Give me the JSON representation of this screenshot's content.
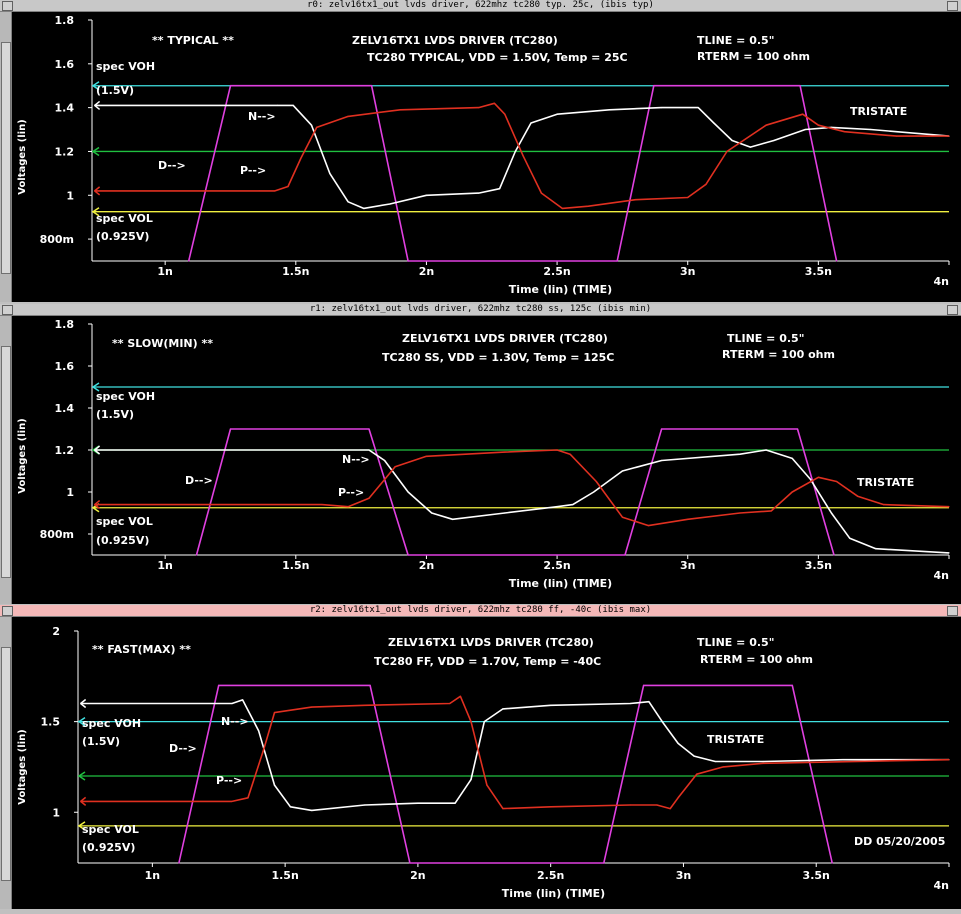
{
  "panels": [
    {
      "window_title": "r0: zelv16tx1_out lvds driver, 622mhz tc280 typ. 25c, (ibis typ)",
      "corner_label": "** TYPICAL **",
      "header_line1": "ZELV16TX1 LVDS DRIVER (TC280)",
      "header_line2": "TC280 TYPICAL, VDD = 1.50V, Temp = 25C",
      "tline_label": "TLINE = 0.5\"",
      "rterm_label": "RTERM = 100 ohm",
      "tristate_label": "TRISTATE",
      "d_label": "D-->",
      "n_label": "N-->",
      "p_label": "P-->",
      "voh_label": "spec VOH",
      "voh_value": "(1.5V)",
      "vol_label": "spec VOL",
      "vol_value": "(0.925V)",
      "date_label": "",
      "active": false
    },
    {
      "window_title": "r1: zelv16tx1_out lvds driver, 622mhz tc280 ss, 125c (ibis min)",
      "corner_label": "** SLOW(MIN) **",
      "header_line1": "ZELV16TX1 LVDS DRIVER (TC280)",
      "header_line2": "TC280 SS, VDD = 1.30V, Temp = 125C",
      "tline_label": "TLINE = 0.5\"",
      "rterm_label": "RTERM = 100 ohm",
      "tristate_label": "TRISTATE",
      "d_label": "D-->",
      "n_label": "N-->",
      "p_label": "P-->",
      "voh_label": "spec VOH",
      "voh_value": "(1.5V)",
      "vol_label": "spec VOL",
      "vol_value": "(0.925V)",
      "date_label": "",
      "active": false
    },
    {
      "window_title": "r2: zelv16tx1_out lvds driver, 622mhz tc280 ff, -40c (ibis max)",
      "corner_label": "** FAST(MAX) **",
      "header_line1": "ZELV16TX1 LVDS DRIVER (TC280)",
      "header_line2": "TC280 FF, VDD = 1.70V, Temp = -40C",
      "tline_label": "TLINE = 0.5\"",
      "rterm_label": "RTERM = 100 ohm",
      "tristate_label": "TRISTATE",
      "d_label": "D-->",
      "n_label": "N-->",
      "p_label": "P-->",
      "voh_label": "spec VOH",
      "voh_value": "(1.5V)",
      "vol_label": "spec VOL",
      "vol_value": "(0.925V)",
      "date_label": "DD 05/20/2005",
      "active": true
    }
  ],
  "colors": {
    "background": "#000000",
    "axis": "#ffffff",
    "voh": "#40e0e0",
    "vol": "#f0f040",
    "mid": "#20c040",
    "d": "#e040e0",
    "n": "#ffffff",
    "p": "#e03020",
    "text": "#ffffff"
  },
  "chart_data": [
    {
      "type": "line",
      "xlabel": "Time (lin) (TIME)",
      "ylabel": "Voltages (lin)",
      "xlim": [
        0.72,
        4.0
      ],
      "ylim": [
        0.7,
        1.8
      ],
      "x_ticks": [
        1.0,
        1.5,
        2.0,
        2.5,
        3.0,
        3.5,
        4.0
      ],
      "x_tick_labels": [
        "1n",
        "1.5n",
        "2n",
        "2.5n",
        "3n",
        "3.5n",
        "4n"
      ],
      "y_ticks": [
        0.8,
        1.0,
        1.2,
        1.4,
        1.6,
        1.8
      ],
      "y_tick_labels": [
        "800m",
        "1",
        "1.2",
        "1.4",
        "1.6",
        "1.8"
      ],
      "hlines": {
        "voh": 1.5,
        "vol": 0.925,
        "mid": 1.2
      },
      "series": [
        {
          "key": "d",
          "points": [
            [
              1.09,
              0.7
            ],
            [
              1.25,
              1.5
            ],
            [
              1.79,
              1.5
            ],
            [
              1.93,
              0.7
            ],
            [
              2.73,
              0.7
            ],
            [
              2.87,
              1.5
            ],
            [
              3.43,
              1.5
            ],
            [
              3.57,
              0.7
            ]
          ]
        },
        {
          "key": "n",
          "points": [
            [
              0.73,
              1.41
            ],
            [
              1.43,
              1.41
            ],
            [
              1.49,
              1.41
            ],
            [
              1.56,
              1.32
            ],
            [
              1.63,
              1.1
            ],
            [
              1.7,
              0.97
            ],
            [
              1.76,
              0.94
            ],
            [
              1.86,
              0.96
            ],
            [
              2.0,
              1.0
            ],
            [
              2.2,
              1.01
            ],
            [
              2.28,
              1.03
            ],
            [
              2.34,
              1.2
            ],
            [
              2.4,
              1.33
            ],
            [
              2.5,
              1.37
            ],
            [
              2.7,
              1.39
            ],
            [
              2.9,
              1.4
            ],
            [
              3.04,
              1.4
            ],
            [
              3.1,
              1.33
            ],
            [
              3.17,
              1.25
            ],
            [
              3.24,
              1.22
            ],
            [
              3.33,
              1.25
            ],
            [
              3.45,
              1.3
            ],
            [
              3.55,
              1.31
            ],
            [
              3.7,
              1.3
            ],
            [
              4.0,
              1.27
            ]
          ]
        },
        {
          "key": "p",
          "points": [
            [
              0.73,
              1.02
            ],
            [
              1.36,
              1.02
            ],
            [
              1.42,
              1.02
            ],
            [
              1.47,
              1.04
            ],
            [
              1.52,
              1.17
            ],
            [
              1.58,
              1.31
            ],
            [
              1.7,
              1.36
            ],
            [
              1.9,
              1.39
            ],
            [
              2.2,
              1.4
            ],
            [
              2.26,
              1.42
            ],
            [
              2.3,
              1.37
            ],
            [
              2.37,
              1.18
            ],
            [
              2.44,
              1.01
            ],
            [
              2.52,
              0.94
            ],
            [
              2.62,
              0.95
            ],
            [
              2.8,
              0.98
            ],
            [
              3.0,
              0.99
            ],
            [
              3.07,
              1.05
            ],
            [
              3.15,
              1.2
            ],
            [
              3.3,
              1.32
            ],
            [
              3.44,
              1.37
            ],
            [
              3.5,
              1.32
            ],
            [
              3.6,
              1.29
            ],
            [
              3.8,
              1.27
            ],
            [
              4.0,
              1.27
            ]
          ]
        }
      ]
    },
    {
      "type": "line",
      "xlabel": "Time (lin) (TIME)",
      "ylabel": "Voltages (lin)",
      "xlim": [
        0.72,
        4.0
      ],
      "ylim": [
        0.7,
        1.8
      ],
      "x_ticks": [
        1.0,
        1.5,
        2.0,
        2.5,
        3.0,
        3.5,
        4.0
      ],
      "x_tick_labels": [
        "1n",
        "1.5n",
        "2n",
        "2.5n",
        "3n",
        "3.5n",
        "4n"
      ],
      "y_ticks": [
        0.8,
        1.0,
        1.2,
        1.4,
        1.6,
        1.8
      ],
      "y_tick_labels": [
        "800m",
        "1",
        "1.2",
        "1.4",
        "1.6",
        "1.8"
      ],
      "hlines": {
        "voh": 1.5,
        "vol": 0.925,
        "mid": 1.2
      },
      "series": [
        {
          "key": "d",
          "points": [
            [
              1.12,
              0.7
            ],
            [
              1.25,
              1.3
            ],
            [
              1.78,
              1.3
            ],
            [
              1.93,
              0.7
            ],
            [
              2.76,
              0.7
            ],
            [
              2.9,
              1.3
            ],
            [
              3.42,
              1.3
            ],
            [
              3.56,
              0.7
            ]
          ]
        },
        {
          "key": "n",
          "points": [
            [
              0.73,
              1.2
            ],
            [
              1.65,
              1.2
            ],
            [
              1.78,
              1.2
            ],
            [
              1.84,
              1.15
            ],
            [
              1.93,
              1.0
            ],
            [
              2.02,
              0.9
            ],
            [
              2.1,
              0.87
            ],
            [
              2.3,
              0.9
            ],
            [
              2.5,
              0.93
            ],
            [
              2.56,
              0.94
            ],
            [
              2.64,
              1.0
            ],
            [
              2.75,
              1.1
            ],
            [
              2.9,
              1.15
            ],
            [
              3.2,
              1.18
            ],
            [
              3.3,
              1.2
            ],
            [
              3.4,
              1.16
            ],
            [
              3.47,
              1.06
            ],
            [
              3.55,
              0.9
            ],
            [
              3.62,
              0.78
            ],
            [
              3.72,
              0.73
            ],
            [
              4.0,
              0.71
            ]
          ]
        },
        {
          "key": "p",
          "points": [
            [
              0.73,
              0.94
            ],
            [
              1.6,
              0.94
            ],
            [
              1.7,
              0.93
            ],
            [
              1.78,
              0.97
            ],
            [
              1.88,
              1.12
            ],
            [
              2.0,
              1.17
            ],
            [
              2.3,
              1.19
            ],
            [
              2.5,
              1.2
            ],
            [
              2.55,
              1.18
            ],
            [
              2.65,
              1.05
            ],
            [
              2.75,
              0.88
            ],
            [
              2.85,
              0.84
            ],
            [
              3.0,
              0.87
            ],
            [
              3.2,
              0.9
            ],
            [
              3.32,
              0.91
            ],
            [
              3.4,
              1.0
            ],
            [
              3.5,
              1.07
            ],
            [
              3.57,
              1.05
            ],
            [
              3.65,
              0.98
            ],
            [
              3.75,
              0.94
            ],
            [
              4.0,
              0.93
            ]
          ]
        }
      ]
    },
    {
      "type": "line",
      "xlabel": "Time (lin) (TIME)",
      "ylabel": "Voltages (lin)",
      "xlim": [
        0.72,
        4.0
      ],
      "ylim": [
        0.72,
        2.0
      ],
      "x_ticks": [
        1.0,
        1.5,
        2.0,
        2.5,
        3.0,
        3.5,
        4.0
      ],
      "x_tick_labels": [
        "1n",
        "1.5n",
        "2n",
        "2.5n",
        "3n",
        "3.5n",
        "4n"
      ],
      "y_ticks": [
        1.0,
        1.5,
        2.0
      ],
      "y_tick_labels": [
        "1",
        "1.5",
        "2"
      ],
      "hlines": {
        "voh": 1.5,
        "vol": 0.925,
        "mid": 1.2
      },
      "series": [
        {
          "key": "d",
          "points": [
            [
              1.1,
              0.72
            ],
            [
              1.25,
              1.7
            ],
            [
              1.82,
              1.7
            ],
            [
              1.97,
              0.72
            ],
            [
              2.7,
              0.72
            ],
            [
              2.85,
              1.7
            ],
            [
              3.41,
              1.7
            ],
            [
              3.56,
              0.72
            ]
          ]
        },
        {
          "key": "n",
          "points": [
            [
              0.73,
              1.6
            ],
            [
              1.3,
              1.6
            ],
            [
              1.34,
              1.62
            ],
            [
              1.4,
              1.45
            ],
            [
              1.46,
              1.15
            ],
            [
              1.52,
              1.03
            ],
            [
              1.6,
              1.01
            ],
            [
              1.8,
              1.04
            ],
            [
              2.0,
              1.05
            ],
            [
              2.14,
              1.05
            ],
            [
              2.2,
              1.18
            ],
            [
              2.25,
              1.5
            ],
            [
              2.32,
              1.57
            ],
            [
              2.5,
              1.59
            ],
            [
              2.8,
              1.6
            ],
            [
              2.87,
              1.61
            ],
            [
              2.92,
              1.5
            ],
            [
              2.98,
              1.38
            ],
            [
              3.04,
              1.31
            ],
            [
              3.12,
              1.28
            ],
            [
              3.3,
              1.28
            ],
            [
              3.6,
              1.29
            ],
            [
              4.0,
              1.29
            ]
          ]
        },
        {
          "key": "p",
          "points": [
            [
              0.73,
              1.06
            ],
            [
              1.3,
              1.06
            ],
            [
              1.36,
              1.08
            ],
            [
              1.42,
              1.35
            ],
            [
              1.46,
              1.55
            ],
            [
              1.6,
              1.58
            ],
            [
              1.8,
              1.59
            ],
            [
              2.12,
              1.6
            ],
            [
              2.16,
              1.64
            ],
            [
              2.2,
              1.5
            ],
            [
              2.26,
              1.15
            ],
            [
              2.32,
              1.02
            ],
            [
              2.5,
              1.03
            ],
            [
              2.8,
              1.04
            ],
            [
              2.9,
              1.04
            ],
            [
              2.95,
              1.02
            ],
            [
              2.98,
              1.08
            ],
            [
              3.05,
              1.21
            ],
            [
              3.15,
              1.25
            ],
            [
              3.3,
              1.27
            ],
            [
              4.0,
              1.29
            ]
          ]
        }
      ]
    }
  ]
}
